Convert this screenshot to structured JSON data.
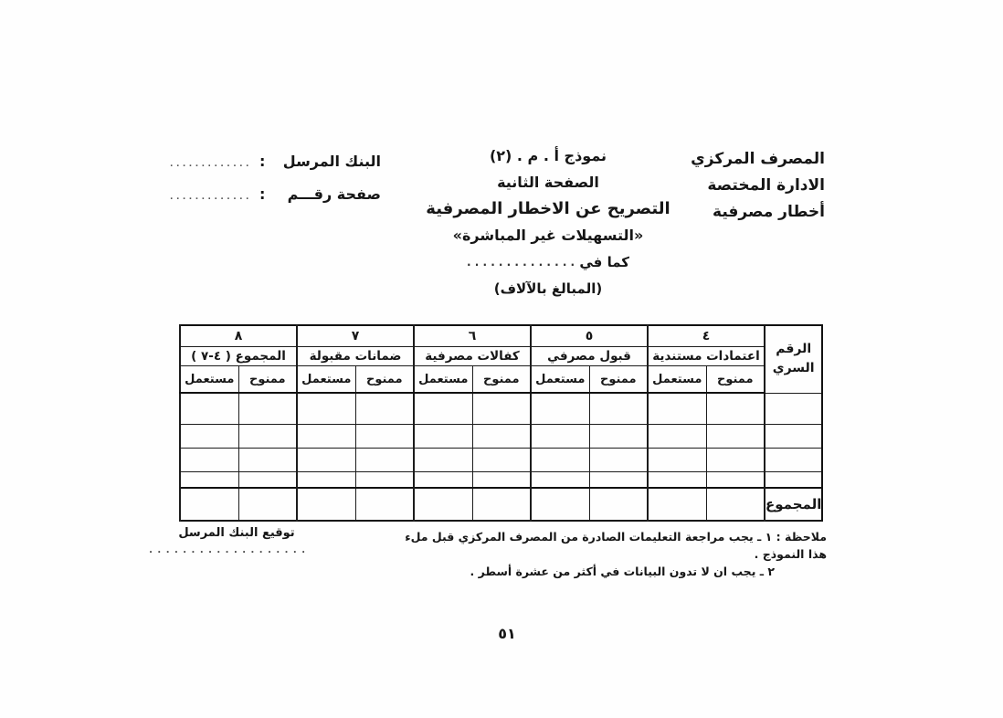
{
  "colors": {
    "paper": "#fefefe",
    "ink": "#161616"
  },
  "document": {
    "page_number": "٥١"
  },
  "header_right": {
    "line1": "المصرف المركزي",
    "line2": "الادارة المختصة",
    "line3": "أخطار مصرفية"
  },
  "header_center": {
    "form_no": "نموذج أ . م . (٢)",
    "page_title": "الصفحة الثانية",
    "main_title": "التصريح عن الاخطار المصرفية",
    "subtitle": "«التسهيلات غير المباشرة»",
    "as_of_label": "كما في",
    "as_of_dots": ". . . . . . . . . . . . . .",
    "amounts_note": "(المبالغ بالآلاف)"
  },
  "header_left": {
    "sending_bank_label": "البنك المرسل",
    "colon": ":",
    "sending_bank_dots": "................",
    "page_no_label": "صفحة رقـــم",
    "page_no_dots": "................"
  },
  "table": {
    "serial_col_line1": "الرقم",
    "serial_col_line2": "السري",
    "sub_granted": "ممنوح",
    "sub_used": "مستعمل",
    "total_row_label": "المجموع",
    "groups": [
      {
        "number": "٤",
        "label": "اعتمادات مستندية"
      },
      {
        "number": "٥",
        "label": "قبول مصرفي"
      },
      {
        "number": "٦",
        "label": "كفالات مصرفية"
      },
      {
        "number": "٧",
        "label": "ضمانات مقبولة"
      },
      {
        "number": "٨",
        "label": "المجموع ( ٤-٧ )"
      }
    ]
  },
  "footer": {
    "note1": "ملاحظة : ١ ـ يجب مراجعة التعليمات الصادرة من المصرف المركزي قبل ملء هذا النموذج .",
    "note2": "٢ ـ يجب ان لا تدون البيانات في أكثر من عشرة أسطر .",
    "signature_label": "توقيع البنك المرسل",
    "signature_dots": ". . . . . . . . . . . . . . . . . . ."
  }
}
